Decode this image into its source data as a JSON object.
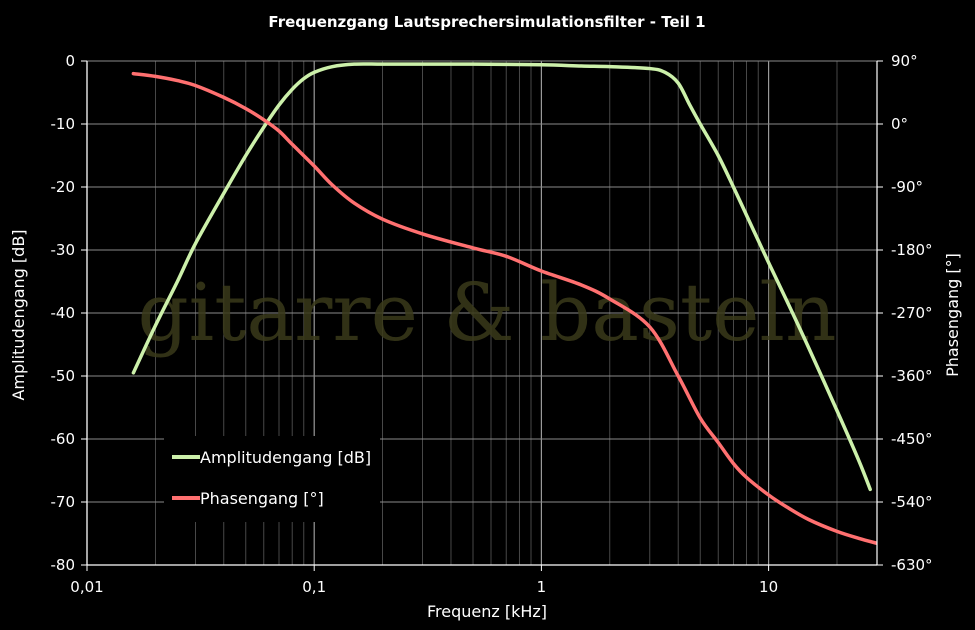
{
  "watermark": "gitarre & basteln",
  "chart_data": {
    "type": "line",
    "title": "Frequenzgang Lautsprechersimulationsfilter - Teil 1",
    "xlabel": "Frequenz [kHz]",
    "ylabel": "Amplitudengang [dB]",
    "y2label": "Phasengang [°]",
    "xscale": "log",
    "xlim": [
      0.01,
      30
    ],
    "ylim": [
      -80,
      0
    ],
    "y2lim": [
      -630,
      90
    ],
    "x_ticks": [
      {
        "value": 0.01,
        "label": "0,01"
      },
      {
        "value": 0.1,
        "label": "0,1"
      },
      {
        "value": 1,
        "label": "1"
      },
      {
        "value": 10,
        "label": "10"
      }
    ],
    "y_ticks": [
      {
        "value": 0,
        "label": "0"
      },
      {
        "value": -10,
        "label": "-10"
      },
      {
        "value": -20,
        "label": "-20"
      },
      {
        "value": -30,
        "label": "-30"
      },
      {
        "value": -40,
        "label": "-40"
      },
      {
        "value": -50,
        "label": "-50"
      },
      {
        "value": -60,
        "label": "-60"
      },
      {
        "value": -70,
        "label": "-70"
      },
      {
        "value": -80,
        "label": "-80"
      }
    ],
    "y2_ticks": [
      {
        "value": 90,
        "label": "90°"
      },
      {
        "value": 0,
        "label": "0°"
      },
      {
        "value": -90,
        "label": "-90°"
      },
      {
        "value": -180,
        "label": "-180°"
      },
      {
        "value": -270,
        "label": "-270°"
      },
      {
        "value": -360,
        "label": "-360°"
      },
      {
        "value": -450,
        "label": "-450°"
      },
      {
        "value": -540,
        "label": "-540°"
      },
      {
        "value": -630,
        "label": "-630°"
      }
    ],
    "grid": true,
    "legend": "lower-left",
    "series": [
      {
        "name": "Amplitudengang [dB]",
        "axis": "left",
        "color": "#ccf0aa",
        "x": [
          0.016,
          0.02,
          0.025,
          0.03,
          0.04,
          0.05,
          0.06,
          0.07,
          0.08,
          0.09,
          0.1,
          0.12,
          0.15,
          0.2,
          0.3,
          0.5,
          1,
          1.5,
          2,
          3,
          3.5,
          4,
          4.5,
          5,
          6,
          7,
          8,
          10,
          12,
          15,
          20,
          25,
          28
        ],
        "values": [
          -49.5,
          -42,
          -35,
          -29,
          -21,
          -15,
          -10.5,
          -7,
          -4.5,
          -2.8,
          -1.8,
          -0.9,
          -0.5,
          -0.5,
          -0.5,
          -0.5,
          -0.6,
          -0.8,
          -0.9,
          -1.2,
          -1.8,
          -3.5,
          -7,
          -10,
          -15,
          -20,
          -24.5,
          -32,
          -38,
          -45.5,
          -55.5,
          -63.5,
          -68
        ]
      },
      {
        "name": "Phasengang [°]",
        "axis": "right",
        "color": "#ff7070",
        "x": [
          0.016,
          0.02,
          0.025,
          0.03,
          0.04,
          0.05,
          0.06,
          0.07,
          0.08,
          0.1,
          0.12,
          0.15,
          0.2,
          0.3,
          0.5,
          0.7,
          1,
          1.5,
          2,
          3,
          4,
          5,
          6,
          7,
          8,
          10,
          12,
          15,
          20,
          25,
          30
        ],
        "values": [
          72,
          68,
          62,
          55,
          38,
          22,
          6,
          -10,
          -29,
          -60,
          -87,
          -113,
          -136,
          -157,
          -177,
          -189,
          -210,
          -230,
          -250,
          -290,
          -360,
          -420,
          -455,
          -485,
          -505,
          -530,
          -547,
          -565,
          -582,
          -592,
          -599
        ]
      }
    ]
  }
}
